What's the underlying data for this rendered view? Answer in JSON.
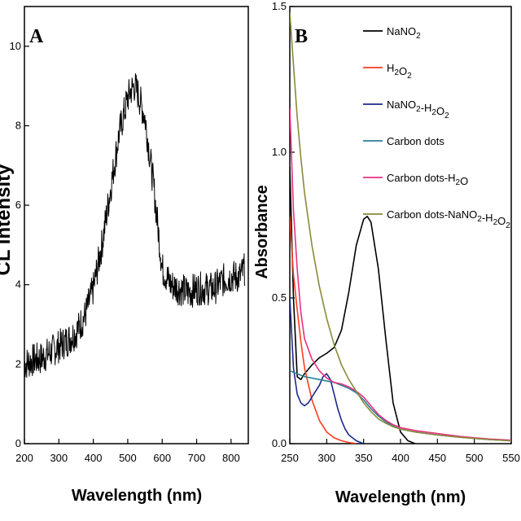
{
  "chart_data": [
    {
      "panel": "A",
      "type": "line",
      "xlabel": "Wavelength (nm)",
      "ylabel": "CL intensity",
      "xlim": [
        200,
        850
      ],
      "ylim": [
        0,
        11
      ],
      "xticks": [
        200,
        300,
        400,
        500,
        600,
        700,
        800
      ],
      "yticks": [
        0,
        2,
        4,
        6,
        8,
        10
      ],
      "series": [
        {
          "color": "#000000",
          "x": [
            200,
            225,
            250,
            275,
            300,
            325,
            350,
            375,
            400,
            425,
            450,
            475,
            500,
            510,
            520,
            530,
            540,
            550,
            575,
            600,
            625,
            650,
            675,
            700,
            725,
            750,
            775,
            800,
            825,
            840
          ],
          "y": [
            2.0,
            2.1,
            2.15,
            2.3,
            2.45,
            2.6,
            2.8,
            3.2,
            3.9,
            5.0,
            6.4,
            7.8,
            8.7,
            8.9,
            9.0,
            8.8,
            8.5,
            8.2,
            6.5,
            4.4,
            4.0,
            3.9,
            3.8,
            3.9,
            3.9,
            3.9,
            4.1,
            4.2,
            4.2,
            4.4
          ]
        }
      ]
    },
    {
      "panel": "B",
      "type": "line",
      "xlabel": "Wavelength (nm)",
      "ylabel": "Absorbance",
      "xlim": [
        250,
        550
      ],
      "ylim": [
        0,
        1.5
      ],
      "xticks": [
        250,
        300,
        350,
        400,
        450,
        500,
        550
      ],
      "yticks": [
        0.0,
        0.5,
        1.0,
        1.5
      ],
      "legend_position": "top-right",
      "series": [
        {
          "name_parts": [
            {
              "t": "NaNO"
            },
            {
              "t": "2",
              "sub": true
            }
          ],
          "color": "#000000",
          "x": [
            250,
            255,
            260,
            265,
            270,
            280,
            290,
            300,
            310,
            320,
            330,
            340,
            350,
            355,
            360,
            370,
            380,
            390,
            400,
            410,
            420
          ],
          "y": [
            0.95,
            0.5,
            0.23,
            0.22,
            0.24,
            0.27,
            0.295,
            0.31,
            0.33,
            0.39,
            0.52,
            0.68,
            0.77,
            0.78,
            0.76,
            0.6,
            0.36,
            0.14,
            0.04,
            0.01,
            0.0
          ]
        },
        {
          "name_parts": [
            {
              "t": "H"
            },
            {
              "t": "2",
              "sub": true
            },
            {
              "t": "O"
            },
            {
              "t": "2",
              "sub": true
            }
          ],
          "color": "#ff3b1f",
          "x": [
            250,
            255,
            260,
            265,
            270,
            280,
            290,
            300,
            310,
            320,
            330,
            340
          ],
          "y": [
            0.78,
            0.58,
            0.46,
            0.35,
            0.26,
            0.15,
            0.08,
            0.04,
            0.02,
            0.01,
            0.004,
            0.0
          ]
        },
        {
          "name_parts": [
            {
              "t": "NaNO"
            },
            {
              "t": "2",
              "sub": true
            },
            {
              "t": "-H"
            },
            {
              "t": "2",
              "sub": true
            },
            {
              "t": "O"
            },
            {
              "t": "2",
              "sub": true
            }
          ],
          "color": "#1b2a8a",
          "x": [
            250,
            255,
            260,
            265,
            270,
            275,
            280,
            285,
            290,
            295,
            300,
            305,
            310,
            315,
            320,
            325,
            330,
            340,
            350
          ],
          "y": [
            0.5,
            0.26,
            0.17,
            0.14,
            0.13,
            0.14,
            0.16,
            0.18,
            0.2,
            0.23,
            0.24,
            0.22,
            0.17,
            0.12,
            0.08,
            0.05,
            0.03,
            0.01,
            0.0
          ]
        },
        {
          "name_parts": [
            {
              "t": "Carbon dots"
            }
          ],
          "color": "#2a7f99",
          "x": [
            250,
            270,
            290,
            310,
            330,
            340,
            350,
            360,
            370,
            380,
            390,
            400,
            420,
            450,
            480,
            500,
            520,
            550
          ],
          "y": [
            0.25,
            0.23,
            0.22,
            0.21,
            0.19,
            0.175,
            0.15,
            0.12,
            0.095,
            0.075,
            0.06,
            0.05,
            0.04,
            0.03,
            0.022,
            0.018,
            0.014,
            0.01
          ]
        },
        {
          "name_parts": [
            {
              "t": "Carbon dots-H"
            },
            {
              "t": "2",
              "sub": true
            },
            {
              "t": "O"
            }
          ],
          "color": "#e8307f",
          "x": [
            250,
            255,
            260,
            265,
            270,
            280,
            290,
            300,
            310,
            320,
            330,
            340,
            350,
            360,
            370,
            380,
            390,
            400,
            420,
            450,
            480,
            500,
            520,
            550
          ],
          "y": [
            1.15,
            0.8,
            0.6,
            0.45,
            0.36,
            0.29,
            0.25,
            0.225,
            0.21,
            0.205,
            0.195,
            0.18,
            0.16,
            0.13,
            0.1,
            0.08,
            0.065,
            0.055,
            0.045,
            0.035,
            0.025,
            0.02,
            0.016,
            0.012
          ]
        },
        {
          "name_parts": [
            {
              "t": "Carbon dots-NaNO"
            },
            {
              "t": "2",
              "sub": true
            },
            {
              "t": "-H"
            },
            {
              "t": "2",
              "sub": true
            },
            {
              "t": "O"
            },
            {
              "t": "2",
              "sub": true
            }
          ],
          "color": "#8a8a3a",
          "x": [
            250,
            255,
            260,
            265,
            270,
            280,
            290,
            300,
            310,
            320,
            330,
            340,
            350,
            360,
            370,
            380,
            390,
            400,
            420,
            450,
            480,
            500,
            520,
            550
          ],
          "y": [
            1.48,
            1.3,
            1.12,
            0.98,
            0.86,
            0.68,
            0.54,
            0.43,
            0.34,
            0.27,
            0.22,
            0.18,
            0.14,
            0.11,
            0.085,
            0.07,
            0.058,
            0.05,
            0.04,
            0.03,
            0.022,
            0.018,
            0.014,
            0.01
          ]
        }
      ]
    }
  ]
}
